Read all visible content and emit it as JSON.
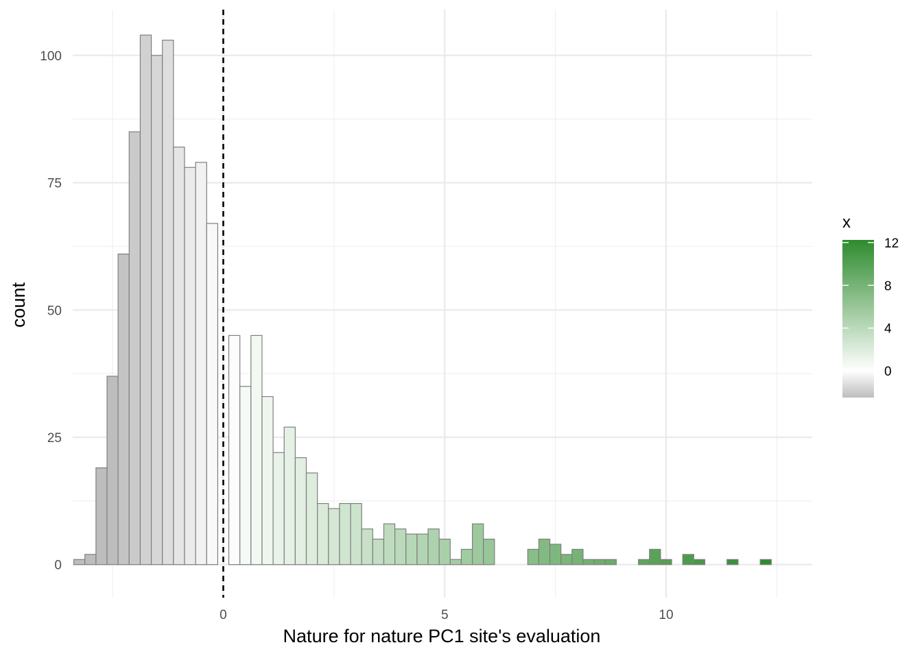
{
  "chart_data": {
    "type": "bar",
    "subtype": "histogram",
    "title": "",
    "xlabel": "Nature for nature PC1 site's evaluation",
    "ylabel": "count",
    "xlim": [
      -3.4,
      13.3
    ],
    "ylim": [
      -6.5,
      109
    ],
    "x_ticks": [
      0,
      5,
      10
    ],
    "y_ticks": [
      0,
      25,
      50,
      75,
      100
    ],
    "grid": true,
    "bin_width": 0.25,
    "bins": [
      {
        "x": -3.25,
        "count": 1
      },
      {
        "x": -3.0,
        "count": 2
      },
      {
        "x": -2.75,
        "count": 19
      },
      {
        "x": -2.5,
        "count": 37
      },
      {
        "x": -2.25,
        "count": 61
      },
      {
        "x": -2.0,
        "count": 85
      },
      {
        "x": -1.75,
        "count": 104
      },
      {
        "x": -1.5,
        "count": 100
      },
      {
        "x": -1.25,
        "count": 103
      },
      {
        "x": -1.0,
        "count": 82
      },
      {
        "x": -0.75,
        "count": 78
      },
      {
        "x": -0.5,
        "count": 79
      },
      {
        "x": -0.25,
        "count": 67
      },
      {
        "x": 0.25,
        "count": 45
      },
      {
        "x": 0.5,
        "count": 35
      },
      {
        "x": 0.75,
        "count": 45
      },
      {
        "x": 1.0,
        "count": 33
      },
      {
        "x": 1.25,
        "count": 22
      },
      {
        "x": 1.5,
        "count": 27
      },
      {
        "x": 1.75,
        "count": 21
      },
      {
        "x": 2.0,
        "count": 18
      },
      {
        "x": 2.25,
        "count": 12
      },
      {
        "x": 2.5,
        "count": 11
      },
      {
        "x": 2.75,
        "count": 12
      },
      {
        "x": 3.0,
        "count": 12
      },
      {
        "x": 3.25,
        "count": 7
      },
      {
        "x": 3.5,
        "count": 5
      },
      {
        "x": 3.75,
        "count": 8
      },
      {
        "x": 4.0,
        "count": 7
      },
      {
        "x": 4.25,
        "count": 6
      },
      {
        "x": 4.5,
        "count": 6
      },
      {
        "x": 4.75,
        "count": 7
      },
      {
        "x": 5.0,
        "count": 5
      },
      {
        "x": 5.25,
        "count": 1
      },
      {
        "x": 5.5,
        "count": 3
      },
      {
        "x": 5.75,
        "count": 8
      },
      {
        "x": 6.0,
        "count": 5
      },
      {
        "x": 7.0,
        "count": 3
      },
      {
        "x": 7.25,
        "count": 5
      },
      {
        "x": 7.5,
        "count": 4
      },
      {
        "x": 7.75,
        "count": 2
      },
      {
        "x": 8.0,
        "count": 3
      },
      {
        "x": 8.25,
        "count": 1
      },
      {
        "x": 8.5,
        "count": 1
      },
      {
        "x": 8.75,
        "count": 1
      },
      {
        "x": 9.5,
        "count": 1
      },
      {
        "x": 9.75,
        "count": 3
      },
      {
        "x": 10.0,
        "count": 1
      },
      {
        "x": 10.5,
        "count": 2
      },
      {
        "x": 10.75,
        "count": 1
      },
      {
        "x": 11.5,
        "count": 1
      },
      {
        "x": 12.25,
        "count": 1
      }
    ],
    "reference_line": {
      "x": 0,
      "style": "dashed",
      "color": "#000000"
    },
    "fill_scale": {
      "title": "x",
      "breaks": [
        0,
        4,
        8,
        12
      ],
      "domain": [
        -2.5,
        12.25
      ],
      "low_color": "#bdbdbd",
      "mid_color": "#ffffff",
      "high_color": "#2e8b2e",
      "midpoint": 0
    },
    "bar_outline_color": "#7f7f7f",
    "legend_position": "right"
  }
}
